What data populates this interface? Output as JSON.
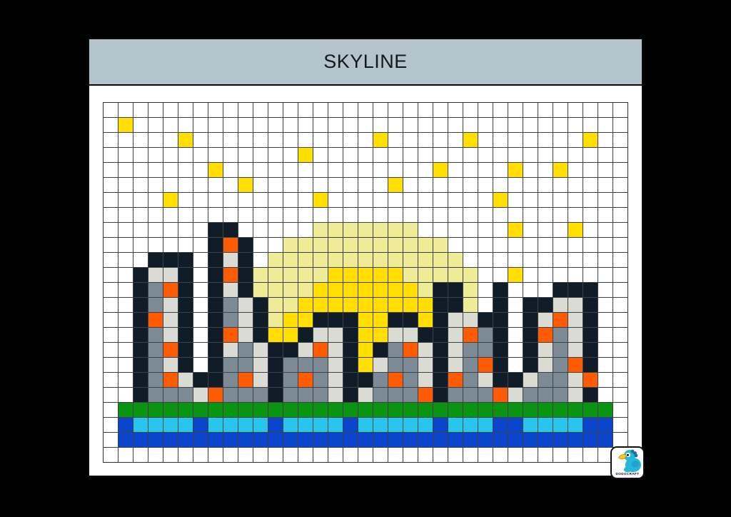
{
  "page": {
    "title": "SKYLINE"
  },
  "logo": {
    "brand": "DODOCRAFT",
    "icon": "dodo-bird-icon"
  },
  "colors": {
    "canvas_bg": "#000000",
    "page_bg": "#ffffff",
    "header_bg": "#b3c4cd",
    "grid_line": "#3c4146",
    "dark_navy": "#101d28",
    "gray": "#7b8a95",
    "light_gray": "#dadcd4",
    "orange": "#ff5b02",
    "yellow": "#ffde00",
    "pale_yellow": "#f0eb97",
    "green": "#0b9314",
    "cyan": "#29c6ec",
    "blue": "#0a45cb",
    "bird_teal": "#25b7dc",
    "bird_crest": "#1e6f93",
    "bird_beak": "#ffc90b"
  },
  "grid": {
    "cols": 35,
    "rows": 24,
    "legend": {
      ".": "white",
      "Y": "yellow",
      "P": "pale_yellow",
      "D": "dark_navy",
      "G": "gray",
      "L": "light_gray",
      "O": "orange",
      "R": "green",
      "C": "cyan",
      "B": "blue"
    },
    "palette": {
      ".": "#ffffff",
      "Y": "#ffde00",
      "P": "#f0eb97",
      "D": "#101d28",
      "G": "#7b8a95",
      "L": "#dadcd4",
      "O": "#ff5b02",
      "R": "#0b9314",
      "C": "#29c6ec",
      "B": "#0a45cb"
    },
    "rows_map": [
      "...................................",
      ".Y.................................",
      ".....Y............Y.....Y.......Y..",
      ".............Y.....................",
      ".......Y..............Y....Y..Y....",
      ".........Y.........Y...............",
      "....Y.........Y...........Y........",
      "...................................",
      ".......DD.....PPPPPPP......Y...Y...",
      ".......DOD..PPPPPPPPPPP............",
      "...DDD.DLD.PPPPPPPPPPPPP...........",
      "..DLLD.DODPPPPPYYYYYPPPPP..Y.......",
      "..DGOD.DLDPPPPYYYYYYYPDDP.D...DDD..",
      "..DGLD.DGLDPPYYYYYYYYYDDP.D.DDLLD..",
      "..DOLD.DGLDPYYDDDYYDDYDLLDD.DLOLD..",
      "..DGLD.DOLDYYDLLDYYLLDDLOGD.DOGLD..",
      "..DGOD.DLGLDDLOLDYDGOLDLGGD.DLGLD..",
      "..DGLD.DGGLDGGGLDYLGGLDLGOD.DLGOD..",
      "..DGOLDDGOLDGOGLDDGOGLDOGLDDLGGLO..",
      "..DGGGLOGGGDGGGLDLGGGODGGGOLGGGLD..",
      ".RRRRRRRRRRRRRRRRRRRRRRRRRRRRRRRRR.",
      ".BCCCCBCCCCBCCCCBCCCCCBCCCBBCCCCBB.",
      ".BBBBBBBBBBBBBBBBBBBBBBBBBBBBBBBBB.",
      "..................................."
    ]
  }
}
